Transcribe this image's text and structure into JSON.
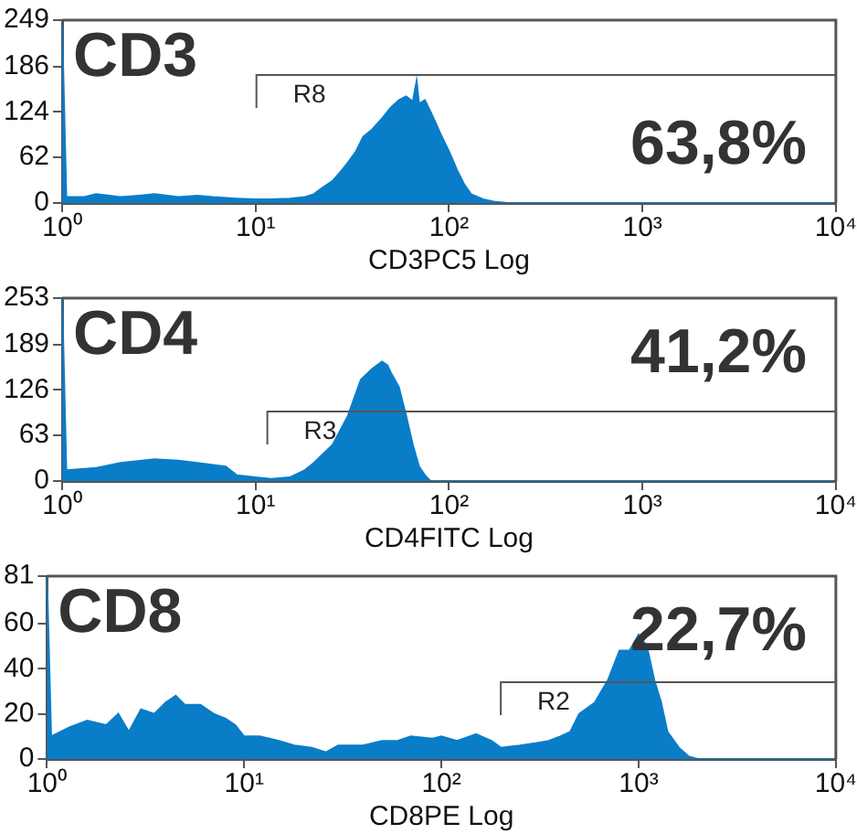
{
  "chart_data": [
    {
      "type": "area",
      "title": "CD3",
      "xlabel": "CD3PC5 Log",
      "log": "x",
      "xlim": [
        1,
        10000
      ],
      "xticks": [
        {
          "value": 1,
          "label": "10⁰"
        },
        {
          "value": 10,
          "label": "10¹"
        },
        {
          "value": 100,
          "label": "10²"
        },
        {
          "value": 1000,
          "label": "10³"
        },
        {
          "value": 10000,
          "label": "10⁴"
        }
      ],
      "ylim": [
        0,
        249
      ],
      "yticks": [
        0,
        62,
        124,
        186,
        249
      ],
      "annotations": [
        "63,8%"
      ],
      "ref_lines": [
        {
          "axis": "x",
          "value": 10.1,
          "label": "R8",
          "color": "#555555"
        }
      ],
      "series": [
        {
          "color": "#0a7dc8",
          "x": [
            1,
            1.05,
            1.3,
            1.5,
            2,
            2.5,
            3,
            4,
            5,
            6,
            8,
            10,
            12,
            15,
            18,
            20,
            22,
            25,
            28,
            30,
            33,
            36,
            40,
            45,
            50,
            55,
            60,
            65,
            68,
            70,
            75,
            80,
            85,
            90,
            100,
            110,
            120,
            130,
            150,
            170,
            200,
            10000
          ],
          "values": [
            240,
            8,
            8,
            12,
            8,
            10,
            12,
            8,
            10,
            8,
            6,
            5,
            5,
            6,
            8,
            12,
            20,
            30,
            45,
            55,
            70,
            90,
            100,
            115,
            130,
            140,
            145,
            138,
            166,
            135,
            140,
            125,
            110,
            95,
            70,
            45,
            25,
            12,
            5,
            2,
            0,
            0
          ]
        }
      ]
    },
    {
      "type": "area",
      "title": "CD4",
      "xlabel": "CD4FITC Log",
      "log": "x",
      "xlim": [
        1,
        10000
      ],
      "xticks": [
        {
          "value": 1,
          "label": "10⁰"
        },
        {
          "value": 10,
          "label": "10¹"
        },
        {
          "value": 100,
          "label": "10²"
        },
        {
          "value": 1000,
          "label": "10³"
        },
        {
          "value": 10000,
          "label": "10⁴"
        }
      ],
      "ylim": [
        0,
        253
      ],
      "yticks": [
        0,
        63,
        126,
        189,
        253
      ],
      "annotations": [
        "41,2%"
      ],
      "ref_lines": [
        {
          "axis": "x",
          "value": 11.5,
          "label": "R3",
          "color": "#555555"
        }
      ],
      "series": [
        {
          "color": "#0a7dc8",
          "x": [
            1,
            1.05,
            1.5,
            2,
            3,
            4,
            5,
            7,
            8,
            10,
            12,
            15,
            18,
            20,
            25,
            30,
            35,
            40,
            45,
            48,
            50,
            55,
            60,
            65,
            70,
            75,
            80,
            10000
          ],
          "values": [
            253,
            15,
            18,
            25,
            30,
            28,
            25,
            20,
            8,
            5,
            3,
            5,
            15,
            25,
            50,
            90,
            140,
            155,
            165,
            160,
            150,
            130,
            90,
            50,
            20,
            8,
            0,
            0
          ]
        }
      ]
    },
    {
      "type": "area",
      "title": "CD8",
      "xlabel": "CD8PE Log",
      "log": "x",
      "xlim": [
        1,
        10000
      ],
      "xticks": [
        {
          "value": 1,
          "label": "10⁰"
        },
        {
          "value": 10,
          "label": "10¹"
        },
        {
          "value": 100,
          "label": "10²"
        },
        {
          "value": 1000,
          "label": "10³"
        },
        {
          "value": 10000,
          "label": "10⁴"
        }
      ],
      "ylim": [
        0,
        81
      ],
      "yticks": [
        0,
        20,
        40,
        60,
        81
      ],
      "annotations": [
        "22,7%"
      ],
      "ref_lines": [
        {
          "axis": "x",
          "value": 200,
          "label": "R2",
          "color": "#555555"
        }
      ],
      "series": [
        {
          "color": "#0a7dc8",
          "x": [
            1,
            1.05,
            1.3,
            1.6,
            2,
            2.3,
            2.6,
            3,
            3.5,
            4,
            4.5,
            5,
            6,
            7,
            8,
            9,
            10,
            12,
            15,
            18,
            22,
            26,
            30,
            40,
            50,
            60,
            70,
            90,
            100,
            120,
            150,
            180,
            200,
            250,
            300,
            350,
            400,
            450,
            500,
            600,
            700,
            800,
            900,
            1000,
            1100,
            1200,
            1300,
            1400,
            1600,
            1800,
            2000,
            10000
          ],
          "values": [
            81,
            10,
            14,
            17,
            15,
            20,
            12,
            22,
            20,
            25,
            28,
            24,
            24,
            20,
            18,
            15,
            10,
            10,
            8,
            6,
            5,
            3,
            6,
            6,
            8,
            8,
            10,
            9,
            10,
            8,
            11,
            8,
            5,
            6,
            7,
            8,
            10,
            12,
            20,
            25,
            35,
            48,
            48,
            55,
            50,
            35,
            25,
            12,
            5,
            1,
            0,
            0
          ]
        }
      ]
    }
  ]
}
